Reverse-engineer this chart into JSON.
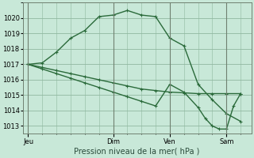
{
  "background_color": "#c8e8d8",
  "grid_color": "#90b8a0",
  "line_color": "#2a6a3a",
  "xtick_labels": [
    "Jeu",
    "Dim",
    "Ven",
    "Sam"
  ],
  "xtick_positions": [
    0,
    48,
    80,
    112
  ],
  "ylabel_text": "Pression niveau de la mer( hPa )",
  "ylim_min": 1012.5,
  "ylim_max": 1021.0,
  "yticks": [
    1013,
    1014,
    1015,
    1016,
    1017,
    1018,
    1019,
    1020
  ],
  "series1_x": [
    0,
    8,
    16,
    24,
    32,
    40,
    48,
    56,
    64,
    72,
    80,
    88,
    96,
    104,
    112,
    120
  ],
  "series1_y": [
    1017.0,
    1017.1,
    1017.8,
    1018.7,
    1019.2,
    1020.1,
    1020.2,
    1020.5,
    1020.2,
    1020.1,
    1018.7,
    1018.2,
    1015.7,
    1014.7,
    1013.8,
    1013.3
  ],
  "series2_x": [
    0,
    8,
    16,
    24,
    32,
    40,
    48,
    56,
    64,
    72,
    80,
    88,
    96,
    104,
    112,
    120
  ],
  "series2_y": [
    1017.0,
    1016.8,
    1016.6,
    1016.4,
    1016.2,
    1016.0,
    1015.8,
    1015.6,
    1015.4,
    1015.3,
    1015.2,
    1015.15,
    1015.1,
    1015.1,
    1015.1,
    1015.1
  ],
  "series3_x": [
    0,
    8,
    16,
    24,
    32,
    40,
    48,
    56,
    64,
    72,
    80,
    88,
    96,
    100,
    104,
    108,
    112,
    116,
    120
  ],
  "series3_y": [
    1017.0,
    1016.7,
    1016.4,
    1016.1,
    1015.8,
    1015.5,
    1015.2,
    1014.9,
    1014.6,
    1014.3,
    1015.7,
    1015.2,
    1014.2,
    1013.5,
    1013.0,
    1012.8,
    1012.8,
    1014.3,
    1015.1
  ],
  "xlim_min": -3,
  "xlim_max": 126,
  "marker_size": 2.5,
  "linewidth": 1.0,
  "tick_fontsize": 6.0,
  "xlabel_fontsize": 7.0
}
